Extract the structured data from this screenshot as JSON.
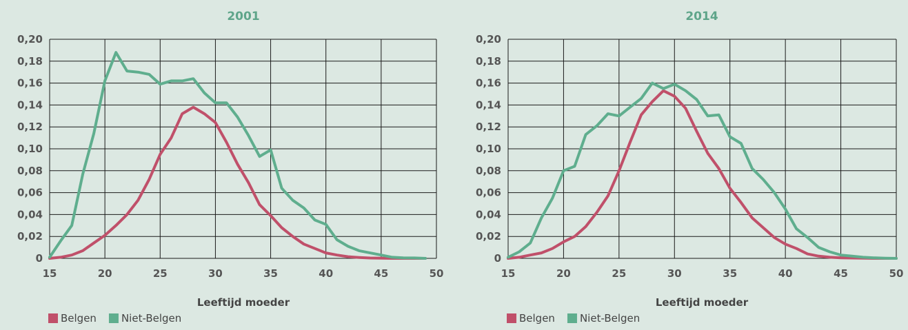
{
  "colors": {
    "background": "#dce8e2",
    "title": "#5fa58a",
    "belgen": "#c0506a",
    "niet_belgen": "#5fae8e",
    "grid": "#1a1a1a"
  },
  "chart_data": [
    {
      "type": "line",
      "title": "2001",
      "xlabel": "Leeftijd moeder",
      "ylabel": "",
      "xlim": [
        15,
        50
      ],
      "ylim": [
        0,
        0.2
      ],
      "x_ticks": [
        15,
        20,
        25,
        30,
        35,
        40,
        45,
        50
      ],
      "y_ticks": [
        0,
        0.02,
        0.04,
        0.06,
        0.08,
        0.1,
        0.12,
        0.14,
        0.16,
        0.18,
        0.2
      ],
      "y_tick_labels": [
        "0",
        "0,02",
        "0,04",
        "0,06",
        "0,08",
        "0,10",
        "0,12",
        "0,14",
        "0,16",
        "0,18",
        "0,20"
      ],
      "x_tick_labels": [
        "15",
        "20",
        "25",
        "30",
        "35",
        "40",
        "45",
        "50"
      ],
      "grid": true,
      "legend": "bottom-left",
      "series": [
        {
          "name": "Belgen",
          "color": "#c0506a",
          "x": [
            15,
            16,
            17,
            18,
            19,
            20,
            21,
            22,
            23,
            24,
            25,
            26,
            27,
            28,
            29,
            30,
            31,
            32,
            33,
            34,
            35,
            36,
            37,
            38,
            39,
            40,
            41,
            42,
            43,
            44,
            45,
            46,
            47,
            48,
            49
          ],
          "y": [
            0,
            0.001,
            0.003,
            0.007,
            0.014,
            0.021,
            0.03,
            0.04,
            0.053,
            0.072,
            0.095,
            0.11,
            0.132,
            0.138,
            0.132,
            0.124,
            0.106,
            0.086,
            0.069,
            0.049,
            0.039,
            0.028,
            0.02,
            0.013,
            0.009,
            0.005,
            0.003,
            0.0015,
            0.0008,
            0.0003,
            0.0001,
            0,
            0,
            0,
            0
          ]
        },
        {
          "name": "Niet-Belgen",
          "color": "#5fae8e",
          "x": [
            15,
            16,
            17,
            18,
            19,
            20,
            21,
            22,
            23,
            24,
            25,
            26,
            27,
            28,
            29,
            30,
            31,
            32,
            33,
            34,
            35,
            36,
            37,
            38,
            39,
            40,
            41,
            42,
            43,
            44,
            45,
            46,
            47,
            48,
            49
          ],
          "y": [
            0.001,
            0.016,
            0.03,
            0.077,
            0.114,
            0.162,
            0.188,
            0.171,
            0.17,
            0.168,
            0.159,
            0.162,
            0.162,
            0.164,
            0.151,
            0.142,
            0.142,
            0.129,
            0.112,
            0.093,
            0.099,
            0.064,
            0.053,
            0.046,
            0.035,
            0.031,
            0.017,
            0.011,
            0.007,
            0.005,
            0.003,
            0.001,
            0.0005,
            0.0004,
            0
          ]
        }
      ]
    },
    {
      "type": "line",
      "title": "2014",
      "xlabel": "Leeftijd moeder",
      "ylabel": "",
      "xlim": [
        15,
        50
      ],
      "ylim": [
        0,
        0.2
      ],
      "x_ticks": [
        15,
        20,
        25,
        30,
        35,
        40,
        45,
        50
      ],
      "y_ticks": [
        0,
        0.02,
        0.04,
        0.06,
        0.08,
        0.1,
        0.12,
        0.14,
        0.16,
        0.18,
        0.2
      ],
      "y_tick_labels": [
        "0",
        "0,02",
        "0,04",
        "0,06",
        "0,08",
        "0,10",
        "0,12",
        "0,14",
        "0,16",
        "0,18",
        "0,20"
      ],
      "x_tick_labels": [
        "15",
        "20",
        "25",
        "30",
        "35",
        "40",
        "45",
        "50"
      ],
      "grid": true,
      "legend": "bottom-left",
      "series": [
        {
          "name": "Belgen",
          "color": "#c0506a",
          "x": [
            15,
            16,
            17,
            18,
            19,
            20,
            21,
            22,
            23,
            24,
            25,
            26,
            27,
            28,
            29,
            30,
            31,
            32,
            33,
            34,
            35,
            36,
            37,
            38,
            39,
            40,
            41,
            42,
            43,
            44,
            45,
            46,
            47,
            48,
            49,
            50
          ],
          "y": [
            0,
            0.001,
            0.003,
            0.005,
            0.009,
            0.015,
            0.02,
            0.029,
            0.042,
            0.057,
            0.08,
            0.106,
            0.131,
            0.143,
            0.153,
            0.148,
            0.137,
            0.116,
            0.096,
            0.082,
            0.064,
            0.051,
            0.037,
            0.028,
            0.019,
            0.013,
            0.009,
            0.004,
            0.002,
            0.001,
            0.0005,
            0.0003,
            0.0001,
            0,
            0,
            0
          ]
        },
        {
          "name": "Niet-Belgen",
          "color": "#5fae8e",
          "x": [
            15,
            16,
            17,
            18,
            19,
            20,
            21,
            22,
            23,
            24,
            25,
            26,
            27,
            28,
            29,
            30,
            31,
            32,
            33,
            34,
            35,
            36,
            37,
            38,
            39,
            40,
            41,
            42,
            43,
            44,
            45,
            46,
            47,
            48,
            49,
            50
          ],
          "y": [
            0.001,
            0.006,
            0.014,
            0.037,
            0.055,
            0.08,
            0.084,
            0.113,
            0.121,
            0.132,
            0.13,
            0.138,
            0.146,
            0.16,
            0.155,
            0.159,
            0.153,
            0.145,
            0.13,
            0.131,
            0.111,
            0.105,
            0.082,
            0.072,
            0.06,
            0.045,
            0.027,
            0.019,
            0.01,
            0.006,
            0.003,
            0.002,
            0.001,
            0.0005,
            0.0002,
            0
          ]
        }
      ]
    }
  ]
}
